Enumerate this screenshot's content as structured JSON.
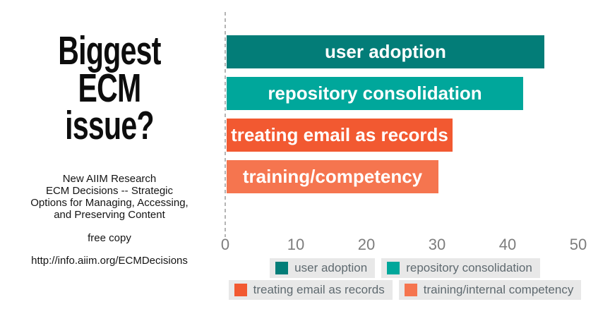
{
  "left_panel": {
    "title": "Biggest ECM\nissue?",
    "subtitle": "New AIIM Research\nECM Decisions -- Strategic\nOptions for Managing, Accessing,\nand Preserving Content",
    "free_copy": "free copy",
    "url": "http://info.aiim.org/ECMDecisions"
  },
  "chart_data": {
    "type": "bar",
    "orientation": "horizontal",
    "categories": [
      "user adoption",
      "repository consolidation",
      "treating email as records",
      "training/competency"
    ],
    "values": [
      45,
      42,
      32,
      30
    ],
    "bar_labels": [
      "user adoption",
      "repository consolidation",
      "treating email as records",
      "training/competency"
    ],
    "colors": [
      "#037d78",
      "#00a79b",
      "#f25931",
      "#f5754f"
    ],
    "x_ticks": [
      0,
      10,
      20,
      30,
      40,
      50
    ],
    "xlim": [
      0,
      50
    ],
    "grid": false,
    "zero_baseline": "dashed",
    "axis_label_color": "#7d7d7d",
    "legend": {
      "position": "bottom",
      "background": "#e8e8e8",
      "entries": [
        {
          "label": "user adoption",
          "color": "#037d78"
        },
        {
          "label": "repository consolidation",
          "color": "#00a79b"
        },
        {
          "label": "treating email as records",
          "color": "#f25931"
        },
        {
          "label": "training/internal competency",
          "color": "#f5754f"
        }
      ]
    }
  }
}
